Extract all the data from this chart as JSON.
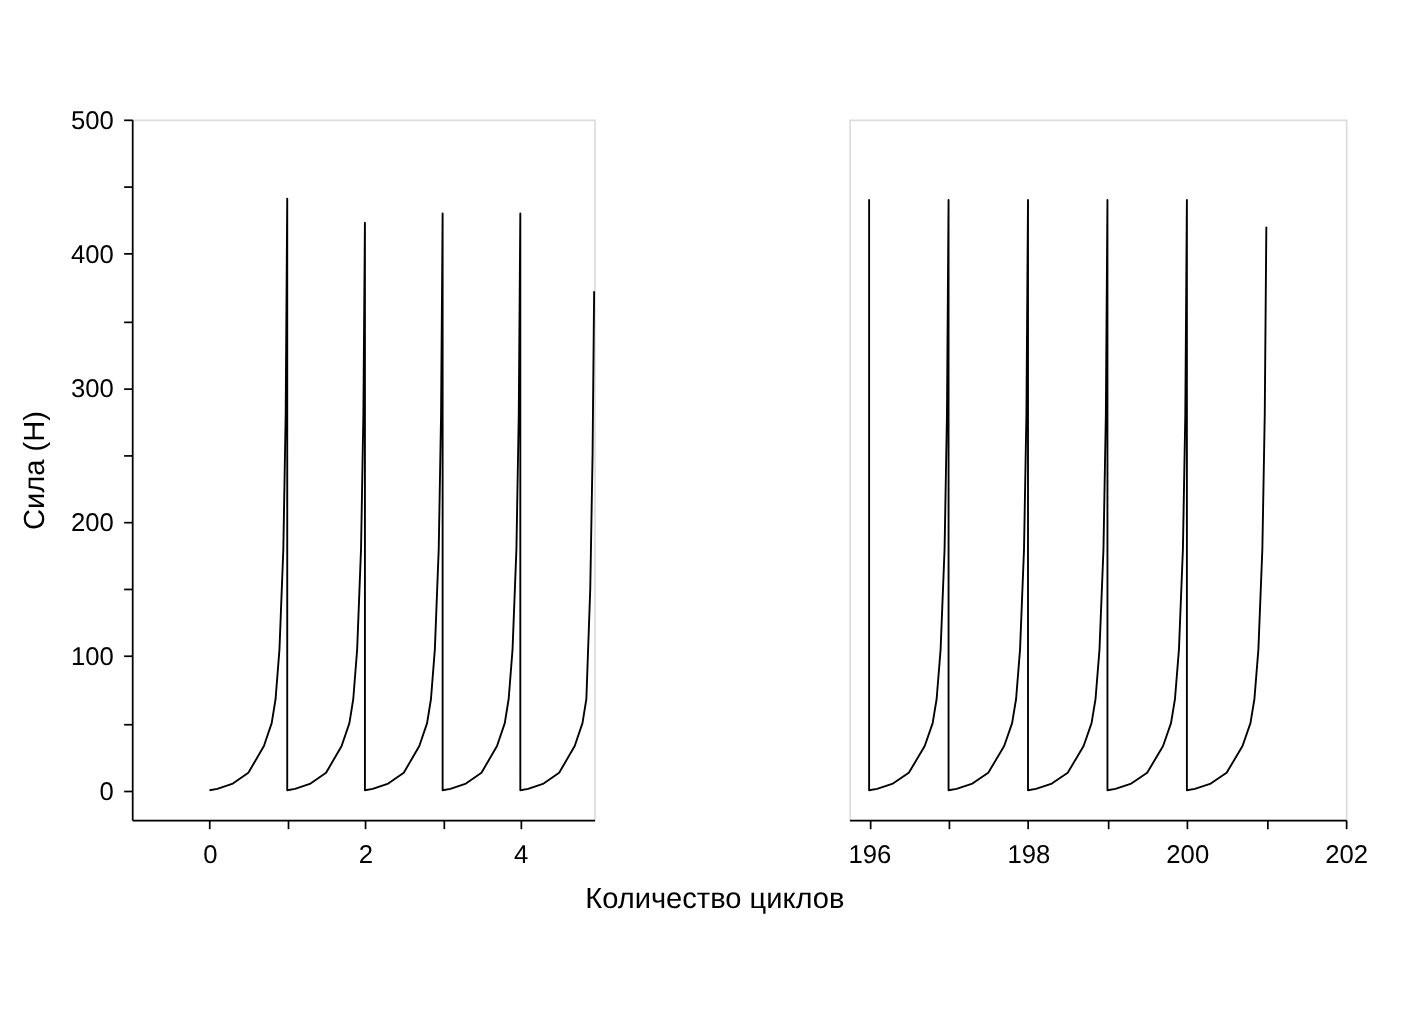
{
  "chart_data": [
    {
      "type": "line",
      "xlabel": "Количество циклов",
      "ylabel": "Сила (Н)",
      "xlim": [
        -1,
        4.95
      ],
      "ylim": [
        -22,
        500
      ],
      "xticks": [
        0,
        {
          "value": 1,
          "label": null
        },
        2,
        {
          "value": 3,
          "label": null
        },
        4
      ],
      "yticks": [
        0,
        {
          "value": 50,
          "label": null
        },
        100,
        {
          "value": 150,
          "label": null
        },
        200,
        {
          "value": 250,
          "label": null
        },
        300,
        {
          "value": 350,
          "label": null
        },
        400,
        {
          "value": 450,
          "label": null
        },
        500
      ],
      "grid": false,
      "legend": false,
      "marker": "none",
      "line_style": "solid",
      "x": [
        0,
        0.1,
        0.3,
        0.5,
        0.7,
        0.8,
        0.85,
        0.9,
        0.95,
        0.98,
        1,
        1,
        1.1,
        1.3,
        1.5,
        1.7,
        1.8,
        1.85,
        1.9,
        1.95,
        1.98,
        2,
        2,
        2.1,
        2.3,
        2.5,
        2.7,
        2.8,
        2.85,
        2.9,
        2.95,
        2.98,
        3,
        3,
        3.1,
        3.3,
        3.5,
        3.7,
        3.8,
        3.85,
        3.9,
        3.95,
        3.98,
        4,
        4,
        4.1,
        4.3,
        4.5,
        4.7,
        4.8,
        4.85,
        4.9,
        4.93,
        4.95
      ],
      "series": [
        {
          "color": "#000000",
          "values": [
            0,
            1,
            5,
            13,
            33,
            50,
            68,
            105,
            180,
            280,
            441,
            0,
            1,
            5,
            13,
            33,
            50,
            68,
            105,
            180,
            280,
            423,
            0,
            1,
            5,
            13,
            33,
            50,
            68,
            105,
            180,
            280,
            430,
            0,
            1,
            5,
            13,
            33,
            50,
            68,
            105,
            180,
            280,
            430,
            0,
            1,
            5,
            13,
            33,
            50,
            68,
            150,
            250,
            372
          ]
        }
      ]
    },
    {
      "type": "line",
      "xlim": [
        195.75,
        202
      ],
      "ylim": [
        -22,
        500
      ],
      "tick_labels": "x",
      "xticks": [
        196,
        {
          "value": 197,
          "label": null
        },
        198,
        {
          "value": 199,
          "label": null
        },
        200,
        {
          "value": 201,
          "label": null
        },
        202
      ],
      "grid": false,
      "legend": false,
      "marker": "none",
      "line_style": "solid",
      "x": [
        196,
        196,
        196,
        196.1,
        196.3,
        196.5,
        196.7,
        196.8,
        196.85,
        196.9,
        196.95,
        196.98,
        197,
        197,
        197.1,
        197.3,
        197.5,
        197.7,
        197.8,
        197.85,
        197.9,
        197.95,
        197.98,
        198,
        198,
        198.1,
        198.3,
        198.5,
        198.7,
        198.8,
        198.85,
        198.9,
        198.95,
        198.98,
        199,
        199,
        199.1,
        199.3,
        199.5,
        199.7,
        199.8,
        199.85,
        199.9,
        199.95,
        199.98,
        200,
        200,
        200.1,
        200.3,
        200.5,
        200.7,
        200.8,
        200.85,
        200.9,
        200.95,
        200.98,
        201
      ],
      "series": [
        {
          "color": "#000000",
          "values": [
            320,
            440,
            0,
            1,
            5,
            13,
            33,
            50,
            68,
            105,
            180,
            280,
            440,
            0,
            1,
            5,
            13,
            33,
            50,
            68,
            105,
            180,
            280,
            440,
            0,
            1,
            5,
            13,
            33,
            50,
            68,
            105,
            180,
            280,
            440,
            0,
            1,
            5,
            13,
            33,
            50,
            68,
            105,
            180,
            280,
            440,
            0,
            1,
            5,
            13,
            33,
            50,
            68,
            105,
            180,
            280,
            420
          ]
        }
      ]
    }
  ]
}
